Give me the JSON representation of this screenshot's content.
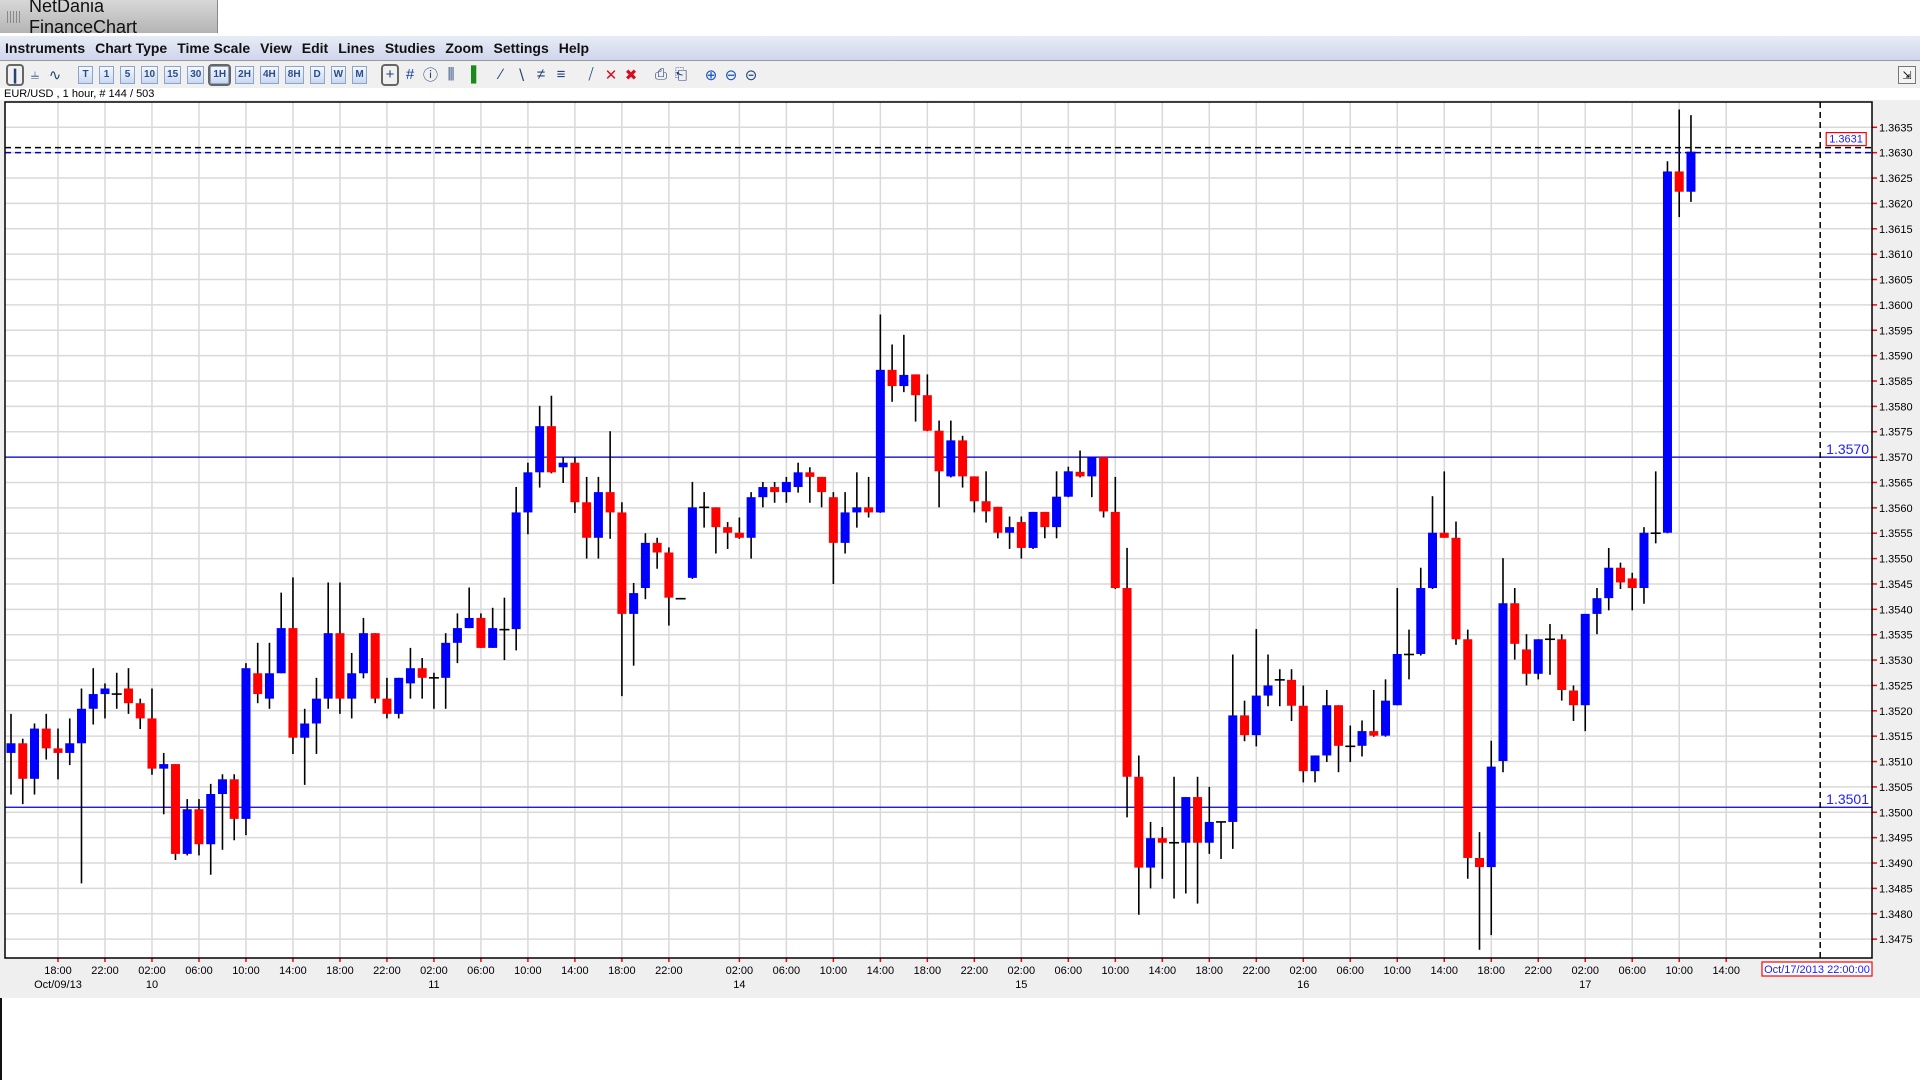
{
  "window": {
    "title": "NetDania FinanceChart"
  },
  "menu": [
    "Instruments",
    "Chart Type",
    "Time Scale",
    "View",
    "Edit",
    "Lines",
    "Studies",
    "Zoom",
    "Settings",
    "Help"
  ],
  "toolbar": {
    "chart_types": [
      {
        "icon": "candlestick-chart-icon",
        "selected": true
      },
      {
        "icon": "bar-chart-icon",
        "selected": false
      },
      {
        "icon": "line-chart-icon",
        "selected": false
      }
    ],
    "timeframes": [
      {
        "label": "T",
        "selected": false
      },
      {
        "label": "1",
        "selected": false
      },
      {
        "label": "5",
        "selected": false
      },
      {
        "label": "10",
        "selected": false
      },
      {
        "label": "15",
        "selected": false
      },
      {
        "label": "30",
        "selected": false
      },
      {
        "label": "1H",
        "selected": true
      },
      {
        "label": "2H",
        "selected": false
      },
      {
        "label": "4H",
        "selected": false
      },
      {
        "label": "8H",
        "selected": false
      },
      {
        "label": "D",
        "selected": false
      },
      {
        "label": "W",
        "selected": false
      },
      {
        "label": "M",
        "selected": false
      }
    ],
    "tools": [
      {
        "icon": "crosshair-icon",
        "selected": true
      },
      {
        "icon": "grid-icon"
      },
      {
        "icon": "info-icon"
      },
      {
        "icon": "studies-icon"
      },
      {
        "icon": "volume-icon"
      },
      {
        "icon": "trendline-icon"
      },
      {
        "icon": "trendline-down-icon"
      },
      {
        "icon": "parallel-lines-icon"
      },
      {
        "icon": "fibonacci-icon"
      },
      {
        "icon": "delete-line-icon"
      },
      {
        "icon": "delete-icon"
      },
      {
        "icon": "delete-all-icon"
      },
      {
        "icon": "print-icon"
      },
      {
        "icon": "print-preview-icon"
      },
      {
        "icon": "zoom-in-icon"
      },
      {
        "icon": "zoom-out-icon"
      },
      {
        "icon": "zoom-reset-icon"
      }
    ],
    "right_button_icon": "detach-icon"
  },
  "info_line": "EUR/USD , 1 hour, # 144 / 503",
  "chart_data": {
    "type": "candlestick",
    "instrument": "EUR/USD",
    "interval": "1 hour",
    "candle_format": [
      "open",
      "high",
      "low",
      "close"
    ],
    "colors": {
      "up": "#0000ff",
      "down": "#ff0000",
      "doji": "#000000",
      "grid": "#d9d9d9",
      "hline": "#0000cc",
      "tick": "#ff0000"
    },
    "ylim": [
      1.3472,
      1.3641
    ],
    "grid": true,
    "y_ticks": [
      "1.3635",
      "1.3630",
      "1.3625",
      "1.3620",
      "1.3615",
      "1.3610",
      "1.3605",
      "1.3600",
      "1.3595",
      "1.3590",
      "1.3585",
      "1.3580",
      "1.3575",
      "1.3570",
      "1.3565",
      "1.3560",
      "1.3555",
      "1.3550",
      "1.3545",
      "1.3540",
      "1.3535",
      "1.3530",
      "1.3525",
      "1.3520",
      "1.3515",
      "1.3510",
      "1.3505",
      "1.3500",
      "1.3495",
      "1.3490",
      "1.3485",
      "1.3480",
      "1.3475"
    ],
    "x_ticks": [
      {
        "time": "18:00",
        "date": "Oct/09/13"
      },
      {
        "time": "22:00",
        "date": ""
      },
      {
        "time": "02:00",
        "date": "10"
      },
      {
        "time": "06:00",
        "date": ""
      },
      {
        "time": "10:00",
        "date": ""
      },
      {
        "time": "14:00",
        "date": ""
      },
      {
        "time": "18:00",
        "date": ""
      },
      {
        "time": "22:00",
        "date": ""
      },
      {
        "time": "02:00",
        "date": "11"
      },
      {
        "time": "06:00",
        "date": ""
      },
      {
        "time": "10:00",
        "date": ""
      },
      {
        "time": "14:00",
        "date": ""
      },
      {
        "time": "18:00",
        "date": ""
      },
      {
        "time": "22:00",
        "date": ""
      },
      {
        "time": "02:00",
        "date": "14"
      },
      {
        "time": "06:00",
        "date": ""
      },
      {
        "time": "10:00",
        "date": ""
      },
      {
        "time": "14:00",
        "date": ""
      },
      {
        "time": "18:00",
        "date": ""
      },
      {
        "time": "22:00",
        "date": ""
      },
      {
        "time": "02:00",
        "date": "15"
      },
      {
        "time": "06:00",
        "date": ""
      },
      {
        "time": "10:00",
        "date": ""
      },
      {
        "time": "14:00",
        "date": ""
      },
      {
        "time": "18:00",
        "date": ""
      },
      {
        "time": "22:00",
        "date": ""
      },
      {
        "time": "02:00",
        "date": "16"
      },
      {
        "time": "06:00",
        "date": ""
      },
      {
        "time": "10:00",
        "date": ""
      },
      {
        "time": "14:00",
        "date": ""
      },
      {
        "time": "18:00",
        "date": ""
      },
      {
        "time": "22:00",
        "date": ""
      },
      {
        "time": "02:00",
        "date": "17"
      },
      {
        "time": "06:00",
        "date": ""
      },
      {
        "time": "10:00",
        "date": ""
      },
      {
        "time": "14:00",
        "date": ""
      }
    ],
    "horizontal_lines": [
      {
        "value": 1.357,
        "label": "1.3570"
      },
      {
        "value": 1.3501,
        "label": "1.3501"
      }
    ],
    "crosshair": {
      "price": 1.3631,
      "price_label": "1.3631",
      "time_label": "Oct/17/2013 22:00:00"
    },
    "last_price": 1.363,
    "candles": [
      [
        1.35117,
        1.35194,
        1.35035,
        1.35136
      ],
      [
        1.35136,
        1.35145,
        1.35016,
        1.35066
      ],
      [
        1.35066,
        1.35175,
        1.35035,
        1.35165
      ],
      [
        1.35165,
        1.35194,
        1.35104,
        1.35126
      ],
      [
        1.35126,
        1.35165,
        1.35065,
        1.35117
      ],
      [
        1.35117,
        1.35185,
        1.35093,
        1.35136
      ],
      [
        1.35136,
        1.35244,
        1.3486,
        1.35204
      ],
      [
        1.35204,
        1.35284,
        1.35173,
        1.35233
      ],
      [
        1.35233,
        1.35254,
        1.35185,
        1.35244
      ],
      [
        1.35233,
        1.35275,
        1.35204,
        1.35233
      ],
      [
        1.35244,
        1.35284,
        1.35194,
        1.35215
      ],
      [
        1.35215,
        1.35224,
        1.35164,
        1.35185
      ],
      [
        1.35185,
        1.35244,
        1.35074,
        1.35086
      ],
      [
        1.35086,
        1.35117,
        1.34996,
        1.35095
      ],
      [
        1.35095,
        1.35095,
        1.34906,
        1.34918
      ],
      [
        1.34918,
        1.35026,
        1.34915,
        1.35006
      ],
      [
        1.35006,
        1.35026,
        1.34915,
        1.34937
      ],
      [
        1.34937,
        1.35056,
        1.34877,
        1.35036
      ],
      [
        1.35036,
        1.35075,
        1.34926,
        1.35065
      ],
      [
        1.35065,
        1.35075,
        1.34945,
        1.34987
      ],
      [
        1.34987,
        1.35294,
        1.34955,
        1.35284
      ],
      [
        1.35274,
        1.35334,
        1.35215,
        1.35233
      ],
      [
        1.35224,
        1.35334,
        1.35204,
        1.35274
      ],
      [
        1.35274,
        1.35433,
        1.35274,
        1.35363
      ],
      [
        1.35363,
        1.35463,
        1.35115,
        1.35147
      ],
      [
        1.35147,
        1.35204,
        1.35054,
        1.35175
      ],
      [
        1.35175,
        1.35265,
        1.35115,
        1.35224
      ],
      [
        1.35224,
        1.35453,
        1.35204,
        1.35353
      ],
      [
        1.35353,
        1.35453,
        1.35194,
        1.35224
      ],
      [
        1.35224,
        1.35314,
        1.35185,
        1.35274
      ],
      [
        1.35274,
        1.35383,
        1.35264,
        1.35353
      ],
      [
        1.35353,
        1.35353,
        1.35215,
        1.35224
      ],
      [
        1.35224,
        1.35265,
        1.35185,
        1.35194
      ],
      [
        1.35194,
        1.35265,
        1.35185,
        1.35265
      ],
      [
        1.35254,
        1.35324,
        1.35224,
        1.35284
      ],
      [
        1.35284,
        1.35304,
        1.35224,
        1.35265
      ],
      [
        1.35265,
        1.35275,
        1.35204,
        1.35265
      ],
      [
        1.35265,
        1.35353,
        1.35204,
        1.35334
      ],
      [
        1.35334,
        1.35392,
        1.35294,
        1.35363
      ],
      [
        1.35363,
        1.35443,
        1.35363,
        1.35383
      ],
      [
        1.35383,
        1.35392,
        1.35324,
        1.35324
      ],
      [
        1.35324,
        1.35403,
        1.35324,
        1.35363
      ],
      [
        1.3536,
        1.35423,
        1.353,
        1.3536
      ],
      [
        1.35361,
        1.35641,
        1.35319,
        1.35591
      ],
      [
        1.35591,
        1.35689,
        1.35548,
        1.3567
      ],
      [
        1.3567,
        1.35801,
        1.3564,
        1.35761
      ],
      [
        1.35761,
        1.35821,
        1.35668,
        1.3567
      ],
      [
        1.3568,
        1.357,
        1.35649,
        1.35689
      ],
      [
        1.35689,
        1.357,
        1.3559,
        1.35611
      ],
      [
        1.35611,
        1.35661,
        1.355,
        1.35541
      ],
      [
        1.35541,
        1.35661,
        1.355,
        1.35631
      ],
      [
        1.35631,
        1.35751,
        1.35539,
        1.35591
      ],
      [
        1.35591,
        1.35611,
        1.35229,
        1.35391
      ],
      [
        1.35391,
        1.35452,
        1.35289,
        1.35432
      ],
      [
        1.35442,
        1.3555,
        1.3542,
        1.35531
      ],
      [
        1.35531,
        1.35541,
        1.3548,
        1.35512
      ],
      [
        1.35512,
        1.35522,
        1.35368,
        1.35423
      ],
      [
        1.35421,
        1.35421,
        1.35421,
        1.35421
      ],
      [
        1.35462,
        1.35651,
        1.3546,
        1.35601
      ],
      [
        1.35601,
        1.35631,
        1.35561,
        1.35601
      ],
      [
        1.35601,
        1.35601,
        1.3551,
        1.35562
      ],
      [
        1.35562,
        1.35572,
        1.35519,
        1.35551
      ],
      [
        1.35551,
        1.35581,
        1.35539,
        1.35541
      ],
      [
        1.35541,
        1.35631,
        1.355,
        1.35621
      ],
      [
        1.35621,
        1.35651,
        1.35601,
        1.35641
      ],
      [
        1.35641,
        1.35651,
        1.3561,
        1.35631
      ],
      [
        1.35631,
        1.35661,
        1.3561,
        1.35651
      ],
      [
        1.35641,
        1.35689,
        1.3563,
        1.3567
      ],
      [
        1.3567,
        1.3568,
        1.3561,
        1.35661
      ],
      [
        1.35661,
        1.35661,
        1.35601,
        1.35631
      ],
      [
        1.35621,
        1.35631,
        1.3545,
        1.35531
      ],
      [
        1.35531,
        1.35631,
        1.3551,
        1.35591
      ],
      [
        1.35591,
        1.3567,
        1.35561,
        1.35601
      ],
      [
        1.35601,
        1.35661,
        1.35581,
        1.35591
      ],
      [
        1.35591,
        1.35981,
        1.3559,
        1.35872
      ],
      [
        1.35872,
        1.35922,
        1.35809,
        1.3584
      ],
      [
        1.3584,
        1.35941,
        1.35828,
        1.35862
      ],
      [
        1.35863,
        1.35863,
        1.3577,
        1.35822
      ],
      [
        1.35822,
        1.35863,
        1.35751,
        1.35752
      ],
      [
        1.35752,
        1.35772,
        1.35601,
        1.35672
      ],
      [
        1.35662,
        1.35772,
        1.3566,
        1.35733
      ],
      [
        1.35733,
        1.35742,
        1.3564,
        1.35662
      ],
      [
        1.35662,
        1.35662,
        1.35591,
        1.35613
      ],
      [
        1.35613,
        1.35672,
        1.35571,
        1.35593
      ],
      [
        1.35602,
        1.35602,
        1.3554,
        1.35551
      ],
      [
        1.35551,
        1.35583,
        1.35519,
        1.35562
      ],
      [
        1.35572,
        1.35583,
        1.355,
        1.35521
      ],
      [
        1.35521,
        1.35592,
        1.35519,
        1.35592
      ],
      [
        1.35592,
        1.35592,
        1.3554,
        1.35562
      ],
      [
        1.35562,
        1.35672,
        1.3554,
        1.35622
      ],
      [
        1.35622,
        1.35681,
        1.35621,
        1.35672
      ],
      [
        1.35671,
        1.35713,
        1.3566,
        1.35662
      ],
      [
        1.35662,
        1.357,
        1.35621,
        1.357
      ],
      [
        1.357,
        1.357,
        1.35581,
        1.35593
      ],
      [
        1.35592,
        1.35661,
        1.3544,
        1.35442
      ],
      [
        1.35442,
        1.35521,
        1.3499,
        1.3507
      ],
      [
        1.3507,
        1.35112,
        1.34798,
        1.34891
      ],
      [
        1.34891,
        1.34981,
        1.3485,
        1.34949
      ],
      [
        1.34949,
        1.34971,
        1.34869,
        1.3494
      ],
      [
        1.3494,
        1.3507,
        1.3483,
        1.3494
      ],
      [
        1.3494,
        1.3503,
        1.3484,
        1.3503
      ],
      [
        1.3503,
        1.3507,
        1.3482,
        1.3494
      ],
      [
        1.3494,
        1.3505,
        1.34918,
        1.34981
      ],
      [
        1.34981,
        1.34981,
        1.34908,
        1.34981
      ],
      [
        1.34981,
        1.35311,
        1.34928,
        1.35191
      ],
      [
        1.35191,
        1.3522,
        1.3514,
        1.35152
      ],
      [
        1.35152,
        1.35361,
        1.3513,
        1.3523
      ],
      [
        1.3523,
        1.35311,
        1.35209,
        1.3525
      ],
      [
        1.35261,
        1.35282,
        1.35209,
        1.35261
      ],
      [
        1.35261,
        1.35282,
        1.3518,
        1.3521
      ],
      [
        1.3521,
        1.3525,
        1.35059,
        1.35081
      ],
      [
        1.35081,
        1.35112,
        1.35059,
        1.35112
      ],
      [
        1.35112,
        1.35241,
        1.35099,
        1.35211
      ],
      [
        1.35211,
        1.35211,
        1.35079,
        1.35131
      ],
      [
        1.3513,
        1.35171,
        1.35099,
        1.3513
      ],
      [
        1.35131,
        1.35181,
        1.3511,
        1.3516
      ],
      [
        1.3516,
        1.35241,
        1.35149,
        1.35151
      ],
      [
        1.35151,
        1.35262,
        1.35149,
        1.3522
      ],
      [
        1.35211,
        1.35442,
        1.35211,
        1.35312
      ],
      [
        1.35311,
        1.3536,
        1.35262,
        1.35311
      ],
      [
        1.35312,
        1.35482,
        1.35309,
        1.35442
      ],
      [
        1.35442,
        1.35623,
        1.3544,
        1.35551
      ],
      [
        1.35551,
        1.35672,
        1.35541,
        1.35541
      ],
      [
        1.35541,
        1.35573,
        1.3533,
        1.35341
      ],
      [
        1.35341,
        1.3536,
        1.34869,
        1.3491
      ],
      [
        1.3491,
        1.34961,
        1.34729,
        1.34892
      ],
      [
        1.34892,
        1.35141,
        1.34758,
        1.3509
      ],
      [
        1.35101,
        1.35501,
        1.35079,
        1.35412
      ],
      [
        1.35412,
        1.35442,
        1.35301,
        1.35332
      ],
      [
        1.35321,
        1.35351,
        1.3525,
        1.35273
      ],
      [
        1.35273,
        1.35341,
        1.35262,
        1.35341
      ],
      [
        1.35341,
        1.35371,
        1.35271,
        1.35341
      ],
      [
        1.35341,
        1.35351,
        1.3522,
        1.35241
      ],
      [
        1.3524,
        1.3525,
        1.3518,
        1.35211
      ],
      [
        1.35211,
        1.35391,
        1.3516,
        1.35391
      ],
      [
        1.35391,
        1.35442,
        1.35351,
        1.35422
      ],
      [
        1.35422,
        1.35521,
        1.35398,
        1.35482
      ],
      [
        1.35482,
        1.35492,
        1.3544,
        1.35453
      ],
      [
        1.35461,
        1.35472,
        1.35398,
        1.35442
      ],
      [
        1.35442,
        1.35562,
        1.35411,
        1.35551
      ],
      [
        1.3555,
        1.35672,
        1.3553,
        1.3555
      ],
      [
        1.35551,
        1.36283,
        1.3555,
        1.36263
      ],
      [
        1.36263,
        1.36385,
        1.36173,
        1.36223
      ],
      [
        1.36223,
        1.36374,
        1.36203,
        1.36302
      ]
    ]
  }
}
